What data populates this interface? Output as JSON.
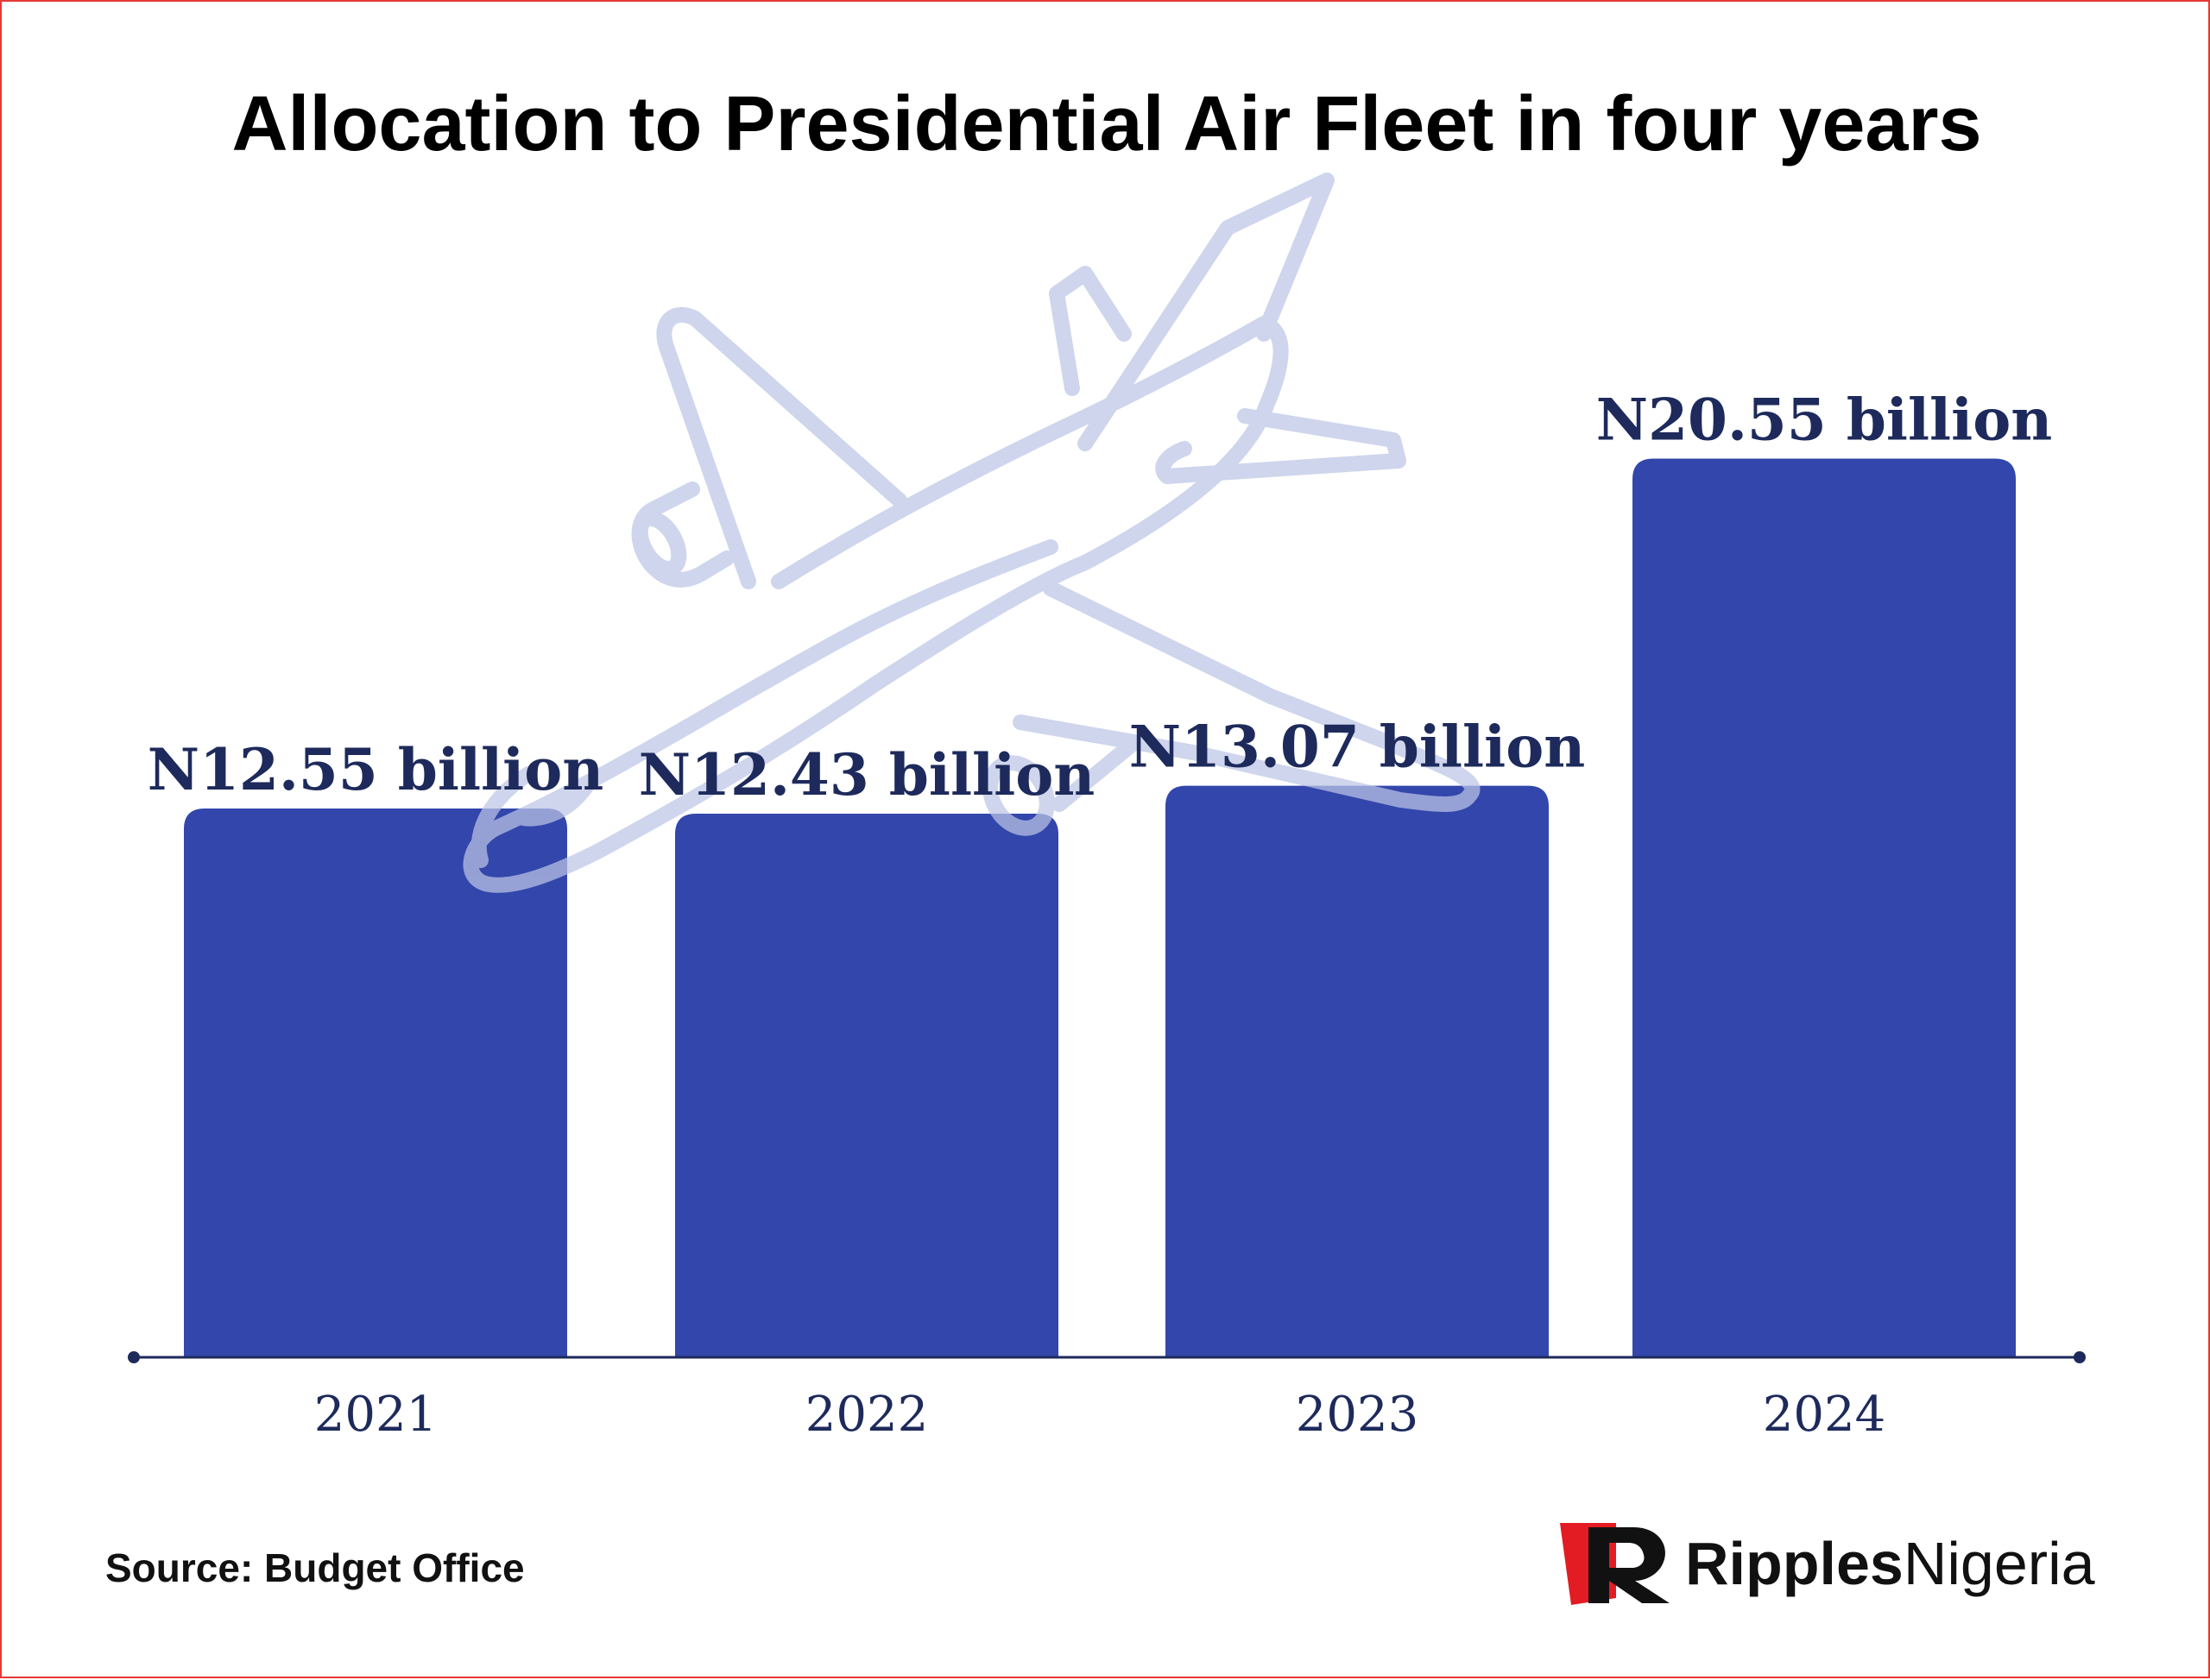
{
  "chart_data": {
    "type": "bar",
    "title": "Allocation to Presidential Air Fleet in four years",
    "categories": [
      "2021",
      "2022",
      "2023",
      "2024"
    ],
    "values": [
      12.55,
      12.43,
      13.07,
      20.55
    ],
    "value_labels": [
      "N12.55 billion",
      "N12.43 billion",
      "N13.07 billion",
      "N20.55 billion"
    ],
    "xlabel": "",
    "ylabel": "",
    "ylim": [
      0,
      23.5
    ],
    "grid": false,
    "bar_color": "#3246ab",
    "axis_color": "#1d2a5b"
  },
  "footer": {
    "source": "Source: Budget Office"
  },
  "brand": {
    "logo_text_bold": "Ripples",
    "logo_text_regular": "Nigeria",
    "color": "#e31b23"
  },
  "decoration": {
    "icon": "airplane-icon",
    "color": "#bcc5e6"
  }
}
